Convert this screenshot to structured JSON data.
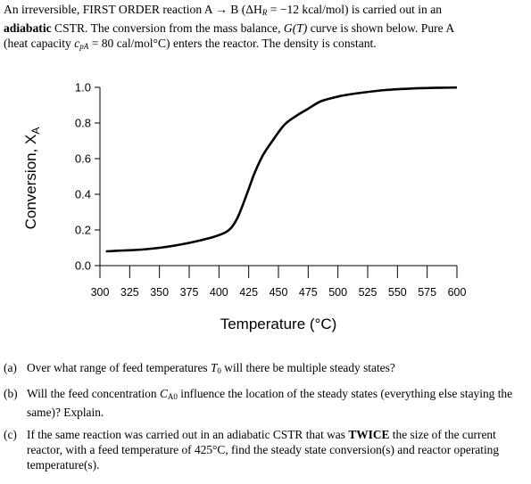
{
  "intro": {
    "line1_a": "An irreversible, FIRST ORDER reaction A",
    "arrow": "→",
    "line1_b": "B (ΔH",
    "dh_sub": "R",
    "line1_c": " = −12 kcal/mol) is carried out in an",
    "bold_word": "adiabatic",
    "line2_a": " CSTR. The conversion from the mass balance, ",
    "g_func": "G(T)",
    "line2_b": " curve is shown below. Pure A",
    "line3_a": "(heat capacity ",
    "cp": "c",
    "cp_sub": "pA",
    "line3_b": " = 80 cal/mol°C) enters the reactor. The density is constant."
  },
  "chart_data": {
    "type": "line",
    "title": "",
    "xlabel": "Temperature (°C)",
    "ylabel": "Conversion, X",
    "ylabel_sub": "A",
    "xlim": [
      300,
      600
    ],
    "ylim": [
      0,
      1
    ],
    "x_ticks": [
      "300",
      "325",
      "350",
      "375",
      "400",
      "425",
      "450",
      "475",
      "500",
      "525",
      "550",
      "575",
      "600"
    ],
    "y_ticks": [
      "0.0",
      "0.2",
      "0.4",
      "0.6",
      "0.8",
      "1.0"
    ],
    "grid": false,
    "x": [
      305,
      320,
      335,
      350,
      365,
      380,
      395,
      405,
      410,
      415,
      420,
      425,
      430,
      437,
      445,
      455,
      465,
      475,
      485,
      495,
      505,
      520,
      540,
      560,
      580,
      600
    ],
    "y": [
      0.08,
      0.085,
      0.09,
      0.1,
      0.115,
      0.135,
      0.16,
      0.185,
      0.21,
      0.26,
      0.34,
      0.43,
      0.52,
      0.62,
      0.7,
      0.79,
      0.84,
      0.88,
      0.92,
      0.94,
      0.955,
      0.97,
      0.985,
      0.993,
      0.997,
      0.999
    ]
  },
  "questions": [
    {
      "label": "(a)",
      "text": "Over what range of feed temperatures ",
      "var": "T",
      "var_sub": "0",
      "text2": " will there be multiple steady states?"
    },
    {
      "label": "(b)",
      "text": "Will the feed concentration ",
      "var": "C",
      "var_sub": "A0",
      "text2": " influence the location of the steady states (everything else staying the same)? Explain."
    },
    {
      "label": "(c)",
      "text": "If the same reaction was carried out in an adiabatic CSTR that was ",
      "bold": "TWICE",
      "text2": " the size of the current reactor, with a feed temperature of 425°C, find the steady state conversion(s) and reactor operating temperature(s)."
    }
  ]
}
